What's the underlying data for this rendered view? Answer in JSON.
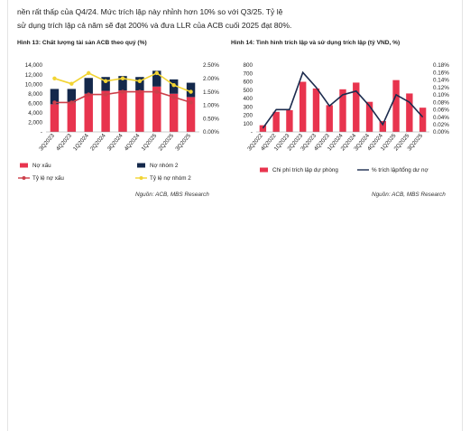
{
  "intro": {
    "line1": "nền rất thấp của Q4/24. Mức trích lập này nhỉnh hơn 10% so với Q3/25. Tỷ lệ",
    "line2": "sử dụng trích lập cả năm sẽ đạt 200% và đưa LLR của ACB cuối 2025 đạt 80%."
  },
  "left": {
    "title": "Hình 13: Chất lượng tài sản ACB theo quý (%)",
    "source": "Nguồn: ACB, MBS Research"
  },
  "right": {
    "title": "Hình 14: Tình hình trích lập và sử dụng trích lập (tỷ VND, %)",
    "source": "Nguồn: ACB, MBS Research"
  },
  "colors": {
    "red": "#e8344e",
    "navy": "#14284b",
    "yellow": "#f2d433",
    "redline": "#cc3f4a",
    "navyline": "#1c2b4e"
  },
  "chart_data": [
    {
      "type": "bar",
      "stacked": true,
      "categories": [
        "3Q2023",
        "4Q2023",
        "1Q2024",
        "2Q2024",
        "3Q2024",
        "4Q2024",
        "1Q2025",
        "2Q2025",
        "3Q2025"
      ],
      "series": [
        {
          "name": "Nợ xấu",
          "type": "bar",
          "axis": "left",
          "color": "#e8344e",
          "values": [
            5800,
            6200,
            8000,
            8600,
            8700,
            8700,
            9500,
            8000,
            7300
          ]
        },
        {
          "name": "Nợ nhóm 2",
          "type": "bar",
          "axis": "left",
          "color": "#14284b",
          "values": [
            3200,
            2800,
            3300,
            2900,
            3000,
            2800,
            3300,
            3000,
            3000
          ]
        },
        {
          "name": "Tỷ lệ nợ xấu",
          "type": "line",
          "axis": "right",
          "color": "#cc3f4a",
          "values": [
            1.1,
            1.1,
            1.4,
            1.4,
            1.5,
            1.5,
            1.5,
            1.3,
            1.1
          ]
        },
        {
          "name": "Tỷ lệ nợ nhóm 2",
          "type": "line",
          "axis": "right",
          "color": "#f2d433",
          "values": [
            2.0,
            1.8,
            2.2,
            1.9,
            2.0,
            1.9,
            2.2,
            1.75,
            1.5
          ]
        }
      ],
      "yticks": [
        "14,000",
        "12,000",
        "10,000",
        "8,000",
        "6,000",
        "4,000",
        "2,000",
        "-"
      ],
      "y2ticks": [
        "2.50%",
        "2.00%",
        "1.50%",
        "1.00%",
        "0.50%",
        "0.00%"
      ],
      "ylim": [
        0,
        14000
      ],
      "y2lim": [
        0,
        2.5
      ],
      "legend": "bottom"
    },
    {
      "type": "bar",
      "categories": [
        "3Q2022",
        "4Q2022",
        "1Q2023",
        "2Q2023",
        "3Q2023",
        "4Q2023",
        "1Q2024",
        "2Q2024",
        "3Q2024",
        "4Q2024",
        "1Q2025",
        "2Q2025",
        "3Q2025"
      ],
      "series": [
        {
          "name": "Chi phí trích lập dự phòng",
          "type": "bar",
          "axis": "left",
          "color": "#e8344e",
          "values": [
            80,
            240,
            260,
            600,
            520,
            320,
            510,
            590,
            360,
            130,
            620,
            460,
            290
          ]
        },
        {
          "name": "% trích lập/tổng dư nợ",
          "type": "line",
          "axis": "right",
          "color": "#1c2b4e",
          "values": [
            0.01,
            0.06,
            0.06,
            0.16,
            0.12,
            0.07,
            0.1,
            0.11,
            0.07,
            0.02,
            0.1,
            0.08,
            0.04
          ]
        }
      ],
      "yticks": [
        "800",
        "700",
        "600",
        "500",
        "400",
        "300",
        "200",
        "100",
        "-"
      ],
      "y2ticks": [
        "0.18%",
        "0.16%",
        "0.14%",
        "0.12%",
        "0.10%",
        "0.08%",
        "0.06%",
        "0.04%",
        "0.02%",
        "0.00%"
      ],
      "ylim": [
        0,
        800
      ],
      "y2lim": [
        0,
        0.18
      ],
      "legend": "bottom"
    }
  ]
}
